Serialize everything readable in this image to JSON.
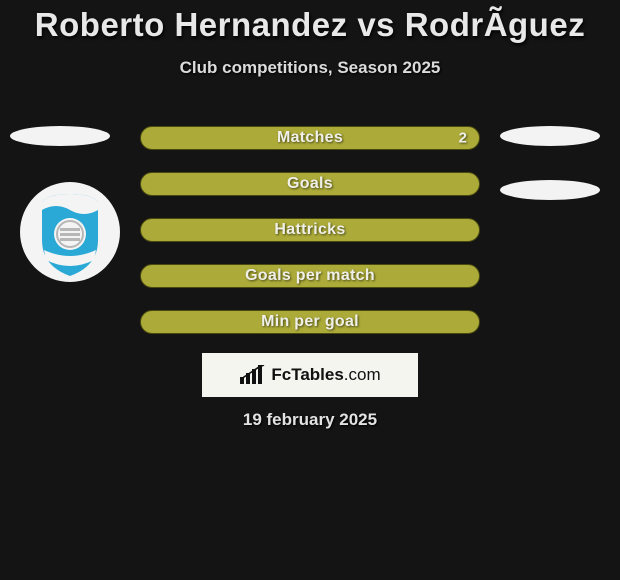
{
  "title": "Roberto Hernandez vs RodrÃ­guez",
  "subtitle": "Club competitions, Season 2025",
  "date_text": "19 february 2025",
  "brand": {
    "name": "FcTables",
    "suffix": ".com"
  },
  "rows": [
    {
      "key": "matches",
      "label": "Matches",
      "value": "2",
      "fill": "#acab39"
    },
    {
      "key": "goals",
      "label": "Goals",
      "value": "",
      "fill": "#acab39"
    },
    {
      "key": "hattricks",
      "label": "Hattricks",
      "value": "",
      "fill": "#acab39"
    },
    {
      "key": "goals_per_match",
      "label": "Goals per match",
      "value": "",
      "fill": "#acab39"
    },
    {
      "key": "min_per_goal",
      "label": "Min per goal",
      "value": "",
      "fill": "#acab39"
    }
  ],
  "style": {
    "background": "#141414",
    "row_border": "#4a4a10",
    "row_text": "#f0f0e8",
    "pill_w": 340,
    "pill_h": 24,
    "pill_gap": 22,
    "title_fontsize": 33,
    "subtitle_fontsize": 17,
    "row_fontsize": 16
  },
  "crest": {
    "ring": "#f4f4f4",
    "shield": "#2aa9d6",
    "ribbon": "#f4f4f4",
    "stripe": "#b7b7b7"
  }
}
